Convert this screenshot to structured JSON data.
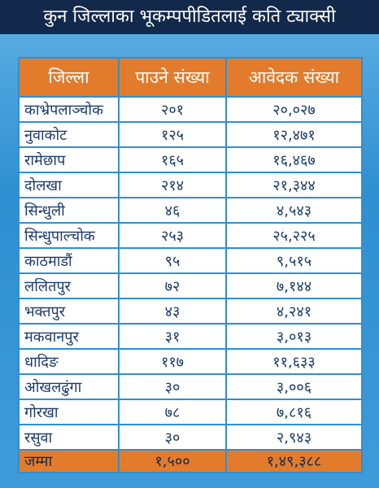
{
  "header": {
    "title": "कुन जिल्लाका भूकम्पपीडितलाई कति ट्याक्सी"
  },
  "table": {
    "columns": [
      "जिल्ला",
      "पाउने संख्या",
      "आवेदक संख्या"
    ],
    "rows": [
      [
        "काभ्रेपलाञ्चोक",
        "२०१",
        "२०,०२७"
      ],
      [
        "नुवाकोट",
        "१२५",
        "१२,४७१"
      ],
      [
        "रामेछाप",
        "१६५",
        "१६,४६७"
      ],
      [
        "दोलखा",
        "२१४",
        "२१,३४४"
      ],
      [
        "सिन्धुली",
        "४६",
        "४,५४३"
      ],
      [
        "सिन्धुपाल्चोक",
        "२५३",
        "२५,२२५"
      ],
      [
        "काठमाडौं",
        "९५",
        "९,५१५"
      ],
      [
        "ललितपुर",
        "७२",
        "७,१४४"
      ],
      [
        "भक्तपुर",
        "४३",
        "४,२४१"
      ],
      [
        "मकवानपुर",
        "३१",
        "३,०१३"
      ],
      [
        "धादिङ",
        "११७",
        "११,६३३"
      ],
      [
        "ओखलढुंगा",
        "३०",
        "३,००६"
      ],
      [
        "गोरखा",
        "७८",
        "७,८१६"
      ],
      [
        "रसुवा",
        "३०",
        "२,९४३"
      ]
    ],
    "total": [
      "जम्मा",
      "१,५००",
      "१,४९,३८८"
    ]
  }
}
